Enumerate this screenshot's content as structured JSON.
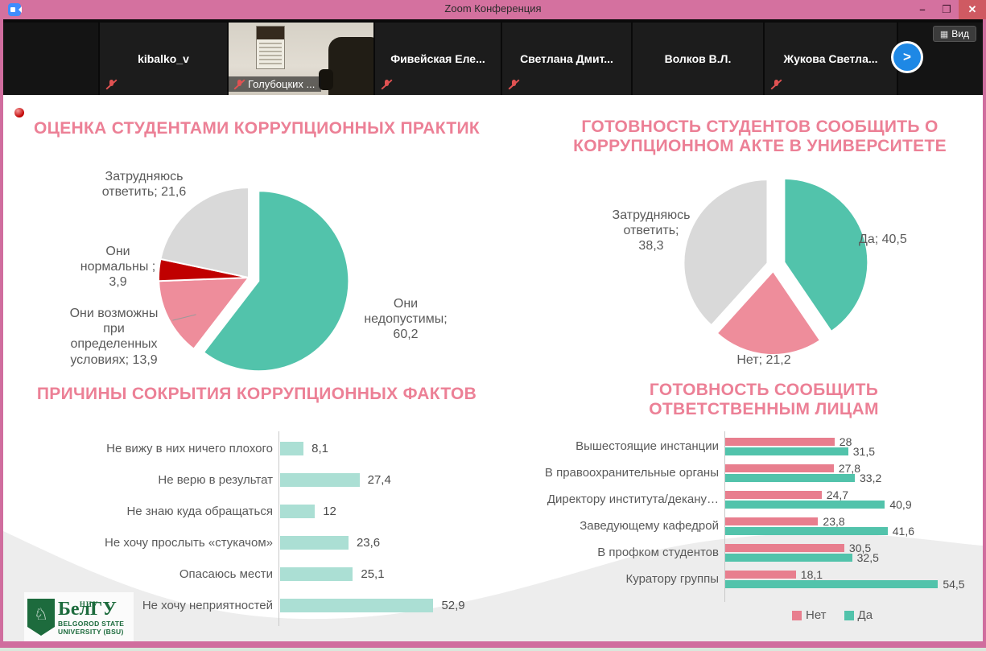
{
  "window": {
    "title": "Zoom Конференция",
    "controls": {
      "minimize": "–",
      "maximize": "❐",
      "close": "✕"
    }
  },
  "participants": {
    "view_button": "Вид",
    "view_icon": "▦",
    "next_arrow": ">",
    "tiles": [
      {
        "name": "kibalko_v",
        "muted": true
      },
      {
        "name": "Голубоцких ...",
        "muted": true
      },
      {
        "name": "Фивейская Еле...",
        "muted": true
      },
      {
        "name": "Светлана Дмит...",
        "muted": true
      },
      {
        "name": "Волков В.Л.",
        "muted": false
      },
      {
        "name": "Жукова Светла...",
        "muted": true
      }
    ]
  },
  "logo": {
    "sup": "НИУ",
    "brand": "БелГУ",
    "en1": "BELGOROD STATE",
    "en2": "UNIVERSITY (BSU)",
    "shield_glyph": "♘"
  },
  "chart_data": [
    {
      "type": "pie",
      "title": "ОЦЕНКА СТУДЕНТАМИ КОРРУПЦИОННЫХ ПРАКТИК",
      "legend_position": "none",
      "slices": [
        {
          "label": "Они недопустимы",
          "value": 60.2,
          "color": "#52c3ab",
          "explode": 13,
          "display": "Они\nнедопустимы;\n60,2"
        },
        {
          "label": "Они возможны при определенных условиях",
          "value": 13.9,
          "color": "#ee8d9b",
          "explode": 0,
          "display": "Они возможны\nпри\nопределенных\nусловиях; 13,9"
        },
        {
          "label": "Они нормальны",
          "value": 3.9,
          "color": "#c00000",
          "explode": 0,
          "display": "Они\nнормальны ;\n3,9"
        },
        {
          "label": "Затрудняюсь ответить",
          "value": 21.6,
          "color": "#d9d9d9",
          "explode": 0,
          "display": "Затрудняюсь\nответить; 21,6"
        }
      ]
    },
    {
      "type": "pie",
      "title": "ГОТОВНОСТЬ СТУДЕНТОВ СООБЩИТЬ О\nКОРРУПЦИОННОМ АКТЕ В УНИВЕРСИТЕТЕ",
      "legend_position": "none",
      "slices": [
        {
          "label": "Да",
          "value": 40.5,
          "color": "#52c3ab",
          "explode": 14,
          "display": "Да; 40,5"
        },
        {
          "label": "Нет",
          "value": 21.2,
          "color": "#ee8d9b",
          "explode": 7,
          "display": "Нет; 21,2"
        },
        {
          "label": "Затрудняюсь ответить",
          "value": 38.3,
          "color": "#d9d9d9",
          "explode": 8,
          "display": "Затрудняюсь\nответить;\n38,3"
        }
      ]
    },
    {
      "type": "bar",
      "orientation": "horizontal",
      "title": "ПРИЧИНЫ СОКРЫТИЯ КОРРУПЦИОННЫХ ФАКТОВ",
      "color": "#abdfd4",
      "xlim": [
        0,
        60
      ],
      "categories": [
        "Не вижу в них ничего плохого",
        "Не верю в результат",
        "Не знаю куда обращаться",
        "Не хочу прослыть «стукачом»",
        "Опасаюсь мести",
        "Не хочу неприятностей"
      ],
      "values": [
        8.1,
        27.4,
        12,
        23.6,
        25.1,
        52.9
      ]
    },
    {
      "type": "bar",
      "orientation": "horizontal",
      "title": "ГОТОВНОСТЬ СООБЩИТЬ\nОТВЕТСТВЕННЫМ ЛИЦАМ",
      "legend_position": "bottom",
      "xlim": [
        0,
        60
      ],
      "categories": [
        "Вышестоящие инстанции",
        "В правоохранительные органы",
        "Директору института/декану…",
        "Заведующему кафедрой",
        "В профком студентов",
        "Куратору группы"
      ],
      "series": [
        {
          "name": "Нет",
          "color": "#e87e8e",
          "values": [
            28,
            27.8,
            24.7,
            23.8,
            30.5,
            18.1
          ]
        },
        {
          "name": "Да",
          "color": "#52c3ab",
          "values": [
            31.5,
            33.2,
            40.9,
            41.6,
            32.5,
            54.5
          ]
        }
      ]
    }
  ]
}
